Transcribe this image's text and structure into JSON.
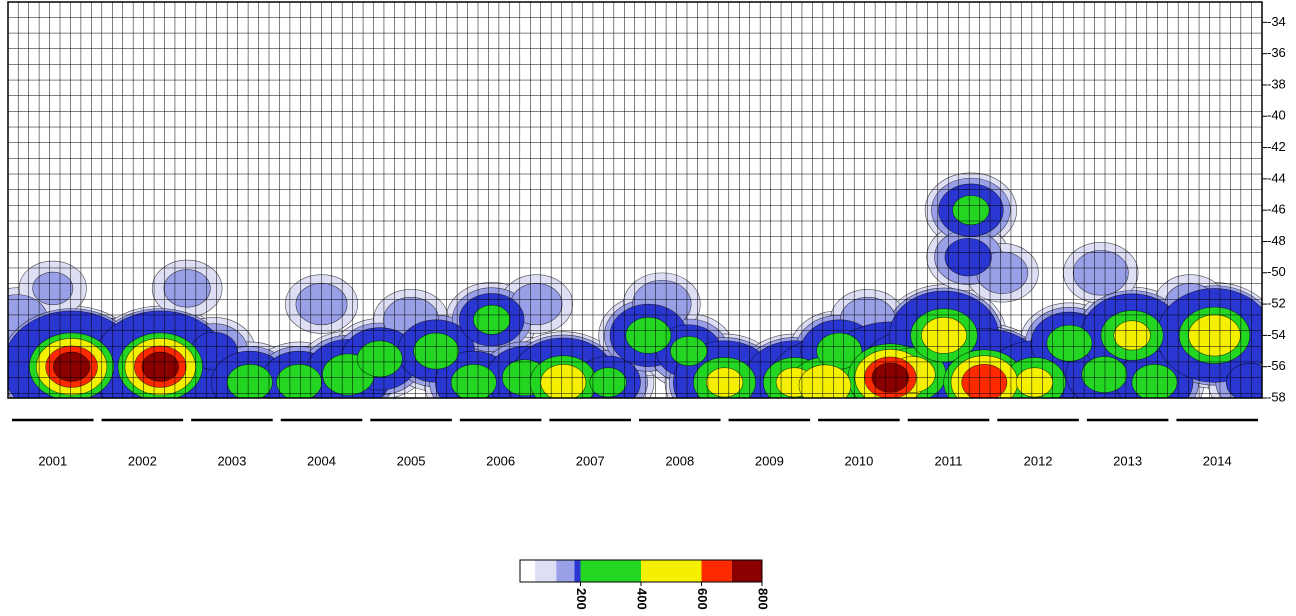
{
  "chart_data": {
    "type": "contour",
    "categories": [
      "2001",
      "2002",
      "2003",
      "2004",
      "2005",
      "2006",
      "2007",
      "2008",
      "2009",
      "2010",
      "2011",
      "2012",
      "2013",
      "2014"
    ],
    "xlim": [
      2001,
      2015
    ],
    "ylim": [
      -58,
      -32.7
    ],
    "yticks": [
      -34,
      -36,
      -38,
      -40,
      -42,
      -44,
      -46,
      -48,
      -50,
      -52,
      -54,
      -56,
      -58
    ],
    "grid": true,
    "x": [
      2001.1,
      2001.71,
      2002.2,
      2002.7,
      2003.3,
      2003.7,
      2004.25,
      2004.8,
      2005.15,
      2005.78,
      2006.2,
      2006.4,
      2006.77,
      2007.2,
      2007.7,
      2008.15,
      2008.6,
      2009.0,
      2009.78,
      2010.12,
      2010.28,
      2010.85,
      2011.1,
      2011.45,
      2011.9,
      2011.75,
      2011.72,
      2012.46,
      2012.85,
      2013.24,
      2013.55,
      2013.8,
      2014.47,
      2014.86,
      2001.5,
      2003.0,
      2005.5,
      2008.3,
      2010.6,
      2012.1,
      2013.2,
      2014.2,
      2004.5,
      2006.9
    ],
    "y": [
      -53,
      -56,
      -55,
      -56,
      -55,
      -57,
      -57,
      -56.5,
      -55.5,
      -55,
      -57,
      -53,
      -56.7,
      -57,
      -57,
      -54,
      -55,
      -57,
      -57,
      -57.2,
      -55,
      -56.7,
      -56.5,
      -54,
      -57,
      -46,
      -49,
      -57,
      -54.5,
      -56.5,
      -54,
      -57,
      -54,
      -57,
      -51,
      -51,
      -53,
      -52,
      -53,
      -50,
      -50,
      -52,
      -52,
      -52
    ],
    "values": [
      180,
      750,
      190,
      750,
      200,
      300,
      300,
      350,
      300,
      300,
      300,
      250,
      300,
      500,
      250,
      300,
      250,
      450,
      450,
      550,
      300,
      750,
      500,
      500,
      700,
      250,
      200,
      450,
      300,
      300,
      450,
      300,
      550,
      200,
      130,
      140,
      160,
      170,
      160,
      150,
      160,
      150,
      150,
      150
    ],
    "levels": [
      50,
      120,
      180,
      200,
      400,
      600,
      700
    ],
    "level_colors": [
      "#dedff5",
      "#9aa0e8",
      "#2a36d2",
      "#22d622",
      "#f4f000",
      "#ff2a00",
      "#8a0000"
    ],
    "colorbar": {
      "clim": [
        0,
        800
      ],
      "ticks": [
        200,
        400,
        600,
        800
      ]
    }
  }
}
